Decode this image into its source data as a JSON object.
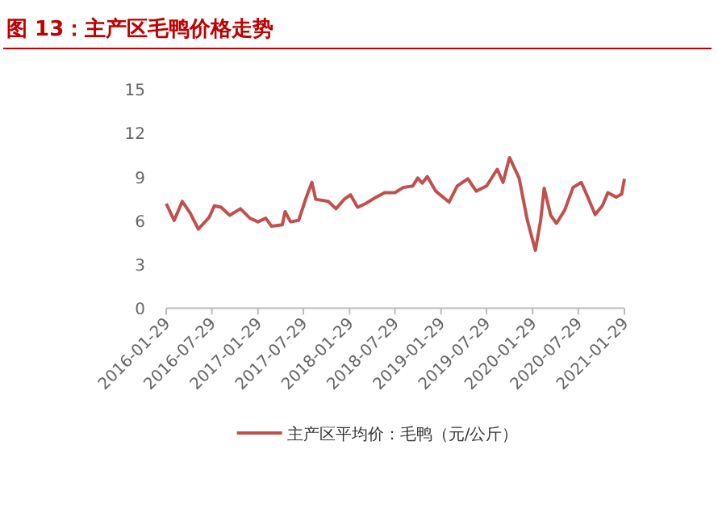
{
  "chart_data": {
    "type": "line",
    "title": "图 13：主产区毛鸭价格走势",
    "x": [
      "2016-01-29",
      "2016-03-01",
      "2016-04-02",
      "2016-05-04",
      "2016-06-05",
      "2016-07-18",
      "2016-08-08",
      "2016-09-04",
      "2016-10-08",
      "2016-11-20",
      "2016-12-28",
      "2017-01-29",
      "2017-03-01",
      "2017-03-24",
      "2017-05-06",
      "2017-05-17",
      "2017-06-08",
      "2017-07-10",
      "2017-08-10",
      "2017-09-01",
      "2017-09-16",
      "2017-11-05",
      "2017-12-06",
      "2018-01-08",
      "2018-02-02",
      "2018-03-02",
      "2018-04-03",
      "2018-05-16",
      "2018-06-18",
      "2018-07-29",
      "2018-08-31",
      "2018-10-08",
      "2018-10-28",
      "2018-11-15",
      "2018-12-05",
      "2019-01-08",
      "2019-03-02",
      "2019-04-03",
      "2019-05-16",
      "2019-06-18",
      "2019-07-29",
      "2019-09-10",
      "2019-10-03",
      "2019-10-29",
      "2019-12-06",
      "2020-01-08",
      "2020-02-09",
      "2020-03-01",
      "2020-03-15",
      "2020-04-10",
      "2020-05-03",
      "2020-06-05",
      "2020-07-08",
      "2020-08-10",
      "2020-09-05",
      "2020-10-04",
      "2020-11-02",
      "2020-11-24",
      "2020-12-27",
      "2021-01-18",
      "2021-01-29"
    ],
    "series": [
      {
        "name": "主产区平均价：毛鸭（元/公斤）",
        "color": "#c0504d",
        "values": [
          7.15,
          6.0,
          7.3,
          6.5,
          5.4,
          6.2,
          7.0,
          6.9,
          6.35,
          6.8,
          6.15,
          5.9,
          6.15,
          5.6,
          5.7,
          6.6,
          5.9,
          6.0,
          7.6,
          8.6,
          7.45,
          7.3,
          6.8,
          7.45,
          7.75,
          6.9,
          7.15,
          7.6,
          7.9,
          7.9,
          8.25,
          8.35,
          8.9,
          8.55,
          9.0,
          8.0,
          7.25,
          8.35,
          8.85,
          8.0,
          8.35,
          9.5,
          8.6,
          10.3,
          8.9,
          6.0,
          3.95,
          6.0,
          8.2,
          6.35,
          5.8,
          6.7,
          8.25,
          8.6,
          7.6,
          6.4,
          7.0,
          7.9,
          7.6,
          7.8,
          8.85
        ]
      }
    ],
    "xlim": [
      "2016-01-29",
      "2021-01-29"
    ],
    "xticks": [
      "2016-01-29",
      "2016-07-29",
      "2017-01-29",
      "2017-07-29",
      "2018-01-29",
      "2018-07-29",
      "2019-01-29",
      "2019-07-29",
      "2020-01-29",
      "2020-07-29",
      "2021-01-29"
    ],
    "ylim": [
      0,
      15
    ],
    "yticks": [
      0,
      3,
      6,
      9,
      12,
      15
    ],
    "grid": false,
    "legend": "bottom"
  }
}
